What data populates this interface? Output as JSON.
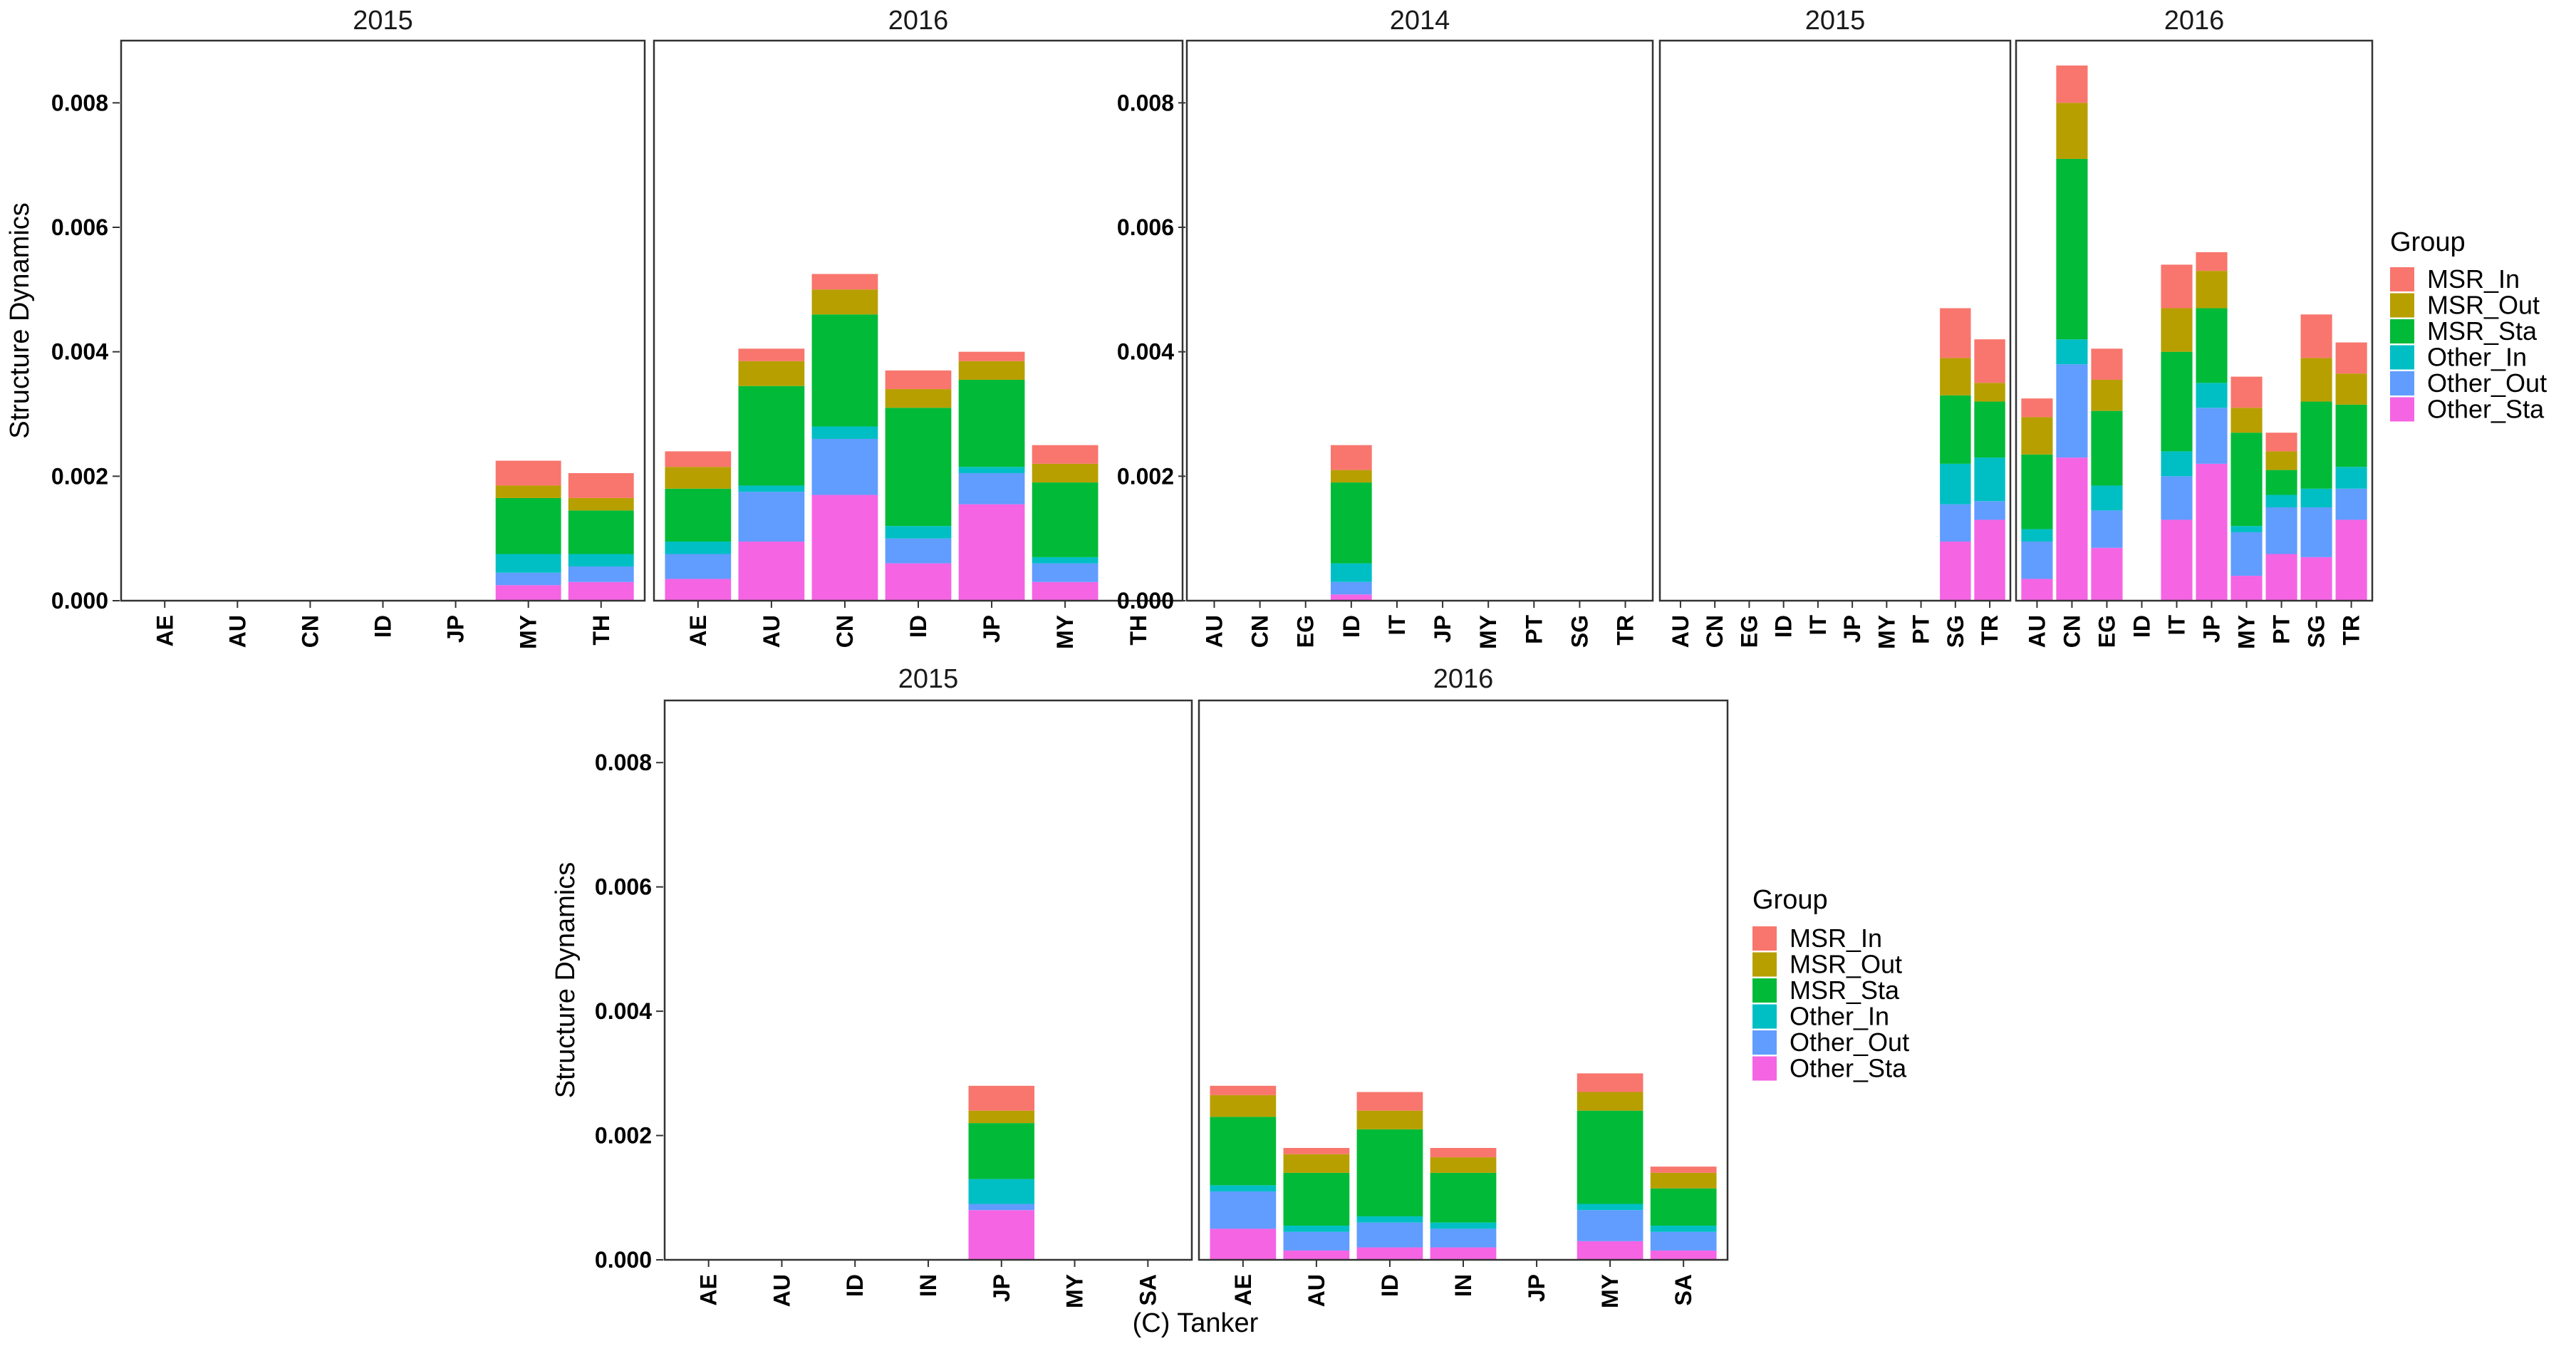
{
  "groups": [
    "MSR_In",
    "MSR_Out",
    "MSR_Sta",
    "Other_In",
    "Other_Out",
    "Other_Sta"
  ],
  "colors": {
    "MSR_In": "#F8766D",
    "MSR_Out": "#B79F00",
    "MSR_Sta": "#00BA38",
    "Other_In": "#00BFC4",
    "Other_Out": "#619CFF",
    "Other_Sta": "#F564E3"
  },
  "caption": "(C) Tanker",
  "chart_data": [
    {
      "type": "bar",
      "stacked": true,
      "ylabel": "Structure Dynamics",
      "ylim": [
        0,
        0.009
      ],
      "yticks": [
        0.0,
        0.002,
        0.004,
        0.006,
        0.008
      ],
      "ytick_labels": [
        "0.000",
        "0.002",
        "0.004",
        "0.006",
        "0.008"
      ],
      "legend": "none",
      "facets": [
        {
          "label": "2015",
          "categories": [
            "AE",
            "AU",
            "CN",
            "ID",
            "JP",
            "MY",
            "TH"
          ],
          "series": [
            {
              "name": "Other_Sta",
              "values": [
                0,
                0,
                0,
                0,
                0,
                0.00025,
                0.0003
              ]
            },
            {
              "name": "Other_Out",
              "values": [
                0,
                0,
                0,
                0,
                0,
                0.0002,
                0.00025
              ]
            },
            {
              "name": "Other_In",
              "values": [
                0,
                0,
                0,
                0,
                0,
                0.0003,
                0.0002
              ]
            },
            {
              "name": "MSR_Sta",
              "values": [
                0,
                0,
                0,
                0,
                0,
                0.0009,
                0.0007
              ]
            },
            {
              "name": "MSR_Out",
              "values": [
                0,
                0,
                0,
                0,
                0,
                0.0002,
                0.0002
              ]
            },
            {
              "name": "MSR_In",
              "values": [
                0,
                0,
                0,
                0,
                0,
                0.0004,
                0.0004
              ]
            }
          ]
        },
        {
          "label": "2016",
          "categories": [
            "AE",
            "AU",
            "CN",
            "ID",
            "JP",
            "MY",
            "TH"
          ],
          "series": [
            {
              "name": "Other_Sta",
              "values": [
                0.00035,
                0.00095,
                0.0017,
                0.0006,
                0.00155,
                0.0003,
                0
              ]
            },
            {
              "name": "Other_Out",
              "values": [
                0.0004,
                0.0008,
                0.0009,
                0.0004,
                0.0005,
                0.0003,
                0
              ]
            },
            {
              "name": "Other_In",
              "values": [
                0.0002,
                0.0001,
                0.0002,
                0.0002,
                0.0001,
                0.0001,
                0
              ]
            },
            {
              "name": "MSR_Sta",
              "values": [
                0.00085,
                0.0016,
                0.0018,
                0.0019,
                0.0014,
                0.0012,
                0
              ]
            },
            {
              "name": "MSR_Out",
              "values": [
                0.00035,
                0.0004,
                0.0004,
                0.0003,
                0.0003,
                0.0003,
                0
              ]
            },
            {
              "name": "MSR_In",
              "values": [
                0.00025,
                0.0002,
                0.00025,
                0.0003,
                0.00015,
                0.0003,
                0
              ]
            }
          ]
        }
      ]
    },
    {
      "type": "bar",
      "stacked": true,
      "ylabel": "Structure Dynamics",
      "ylim": [
        0,
        0.009
      ],
      "yticks": [
        0.0,
        0.002,
        0.004,
        0.006,
        0.008
      ],
      "ytick_labels": [
        "0.000",
        "0.002",
        "0.004",
        "0.006",
        "0.008"
      ],
      "legend": "right",
      "legend_title": "Group",
      "facets": [
        {
          "label": "2014",
          "categories": [
            "AU",
            "CN",
            "EG",
            "ID",
            "IT",
            "JP",
            "MY",
            "PT",
            "SG",
            "TR"
          ],
          "series": [
            {
              "name": "Other_Sta",
              "values": [
                0,
                0,
                0,
                0.0001,
                0,
                0,
                0,
                0,
                0,
                0
              ]
            },
            {
              "name": "Other_Out",
              "values": [
                0,
                0,
                0,
                0.0002,
                0,
                0,
                0,
                0,
                0,
                0
              ]
            },
            {
              "name": "Other_In",
              "values": [
                0,
                0,
                0,
                0.0003,
                0,
                0,
                0,
                0,
                0,
                0
              ]
            },
            {
              "name": "MSR_Sta",
              "values": [
                0,
                0,
                0,
                0.0013,
                0,
                0,
                0,
                0,
                0,
                0
              ]
            },
            {
              "name": "MSR_Out",
              "values": [
                0,
                0,
                0,
                0.0002,
                0,
                0,
                0,
                0,
                0,
                0
              ]
            },
            {
              "name": "MSR_In",
              "values": [
                0,
                0,
                0,
                0.0004,
                0,
                0,
                0,
                0,
                0,
                0
              ]
            }
          ]
        },
        {
          "label": "2015",
          "categories": [
            "AU",
            "CN",
            "EG",
            "ID",
            "IT",
            "JP",
            "MY",
            "PT",
            "SG",
            "TR"
          ],
          "series": [
            {
              "name": "Other_Sta",
              "values": [
                0,
                0,
                0,
                0,
                0,
                0,
                0,
                0,
                0.00095,
                0.0013
              ]
            },
            {
              "name": "Other_Out",
              "values": [
                0,
                0,
                0,
                0,
                0,
                0,
                0,
                0,
                0.0006,
                0.0003
              ]
            },
            {
              "name": "Other_In",
              "values": [
                0,
                0,
                0,
                0,
                0,
                0,
                0,
                0,
                0.00065,
                0.0007
              ]
            },
            {
              "name": "MSR_Sta",
              "values": [
                0,
                0,
                0,
                0,
                0,
                0,
                0,
                0,
                0.0011,
                0.0009
              ]
            },
            {
              "name": "MSR_Out",
              "values": [
                0,
                0,
                0,
                0,
                0,
                0,
                0,
                0,
                0.0006,
                0.0003
              ]
            },
            {
              "name": "MSR_In",
              "values": [
                0,
                0,
                0,
                0,
                0,
                0,
                0,
                0,
                0.0008,
                0.0007
              ]
            }
          ]
        },
        {
          "label": "2016",
          "categories": [
            "AU",
            "CN",
            "EG",
            "ID",
            "IT",
            "JP",
            "MY",
            "PT",
            "SG",
            "TR"
          ],
          "series": [
            {
              "name": "Other_Sta",
              "values": [
                0.00035,
                0.0023,
                0.00085,
                0,
                0.0013,
                0.0022,
                0.0004,
                0.00075,
                0.0007,
                0.0013
              ]
            },
            {
              "name": "Other_Out",
              "values": [
                0.0006,
                0.0015,
                0.0006,
                0,
                0.0007,
                0.0009,
                0.0007,
                0.00075,
                0.0008,
                0.0005
              ]
            },
            {
              "name": "Other_In",
              "values": [
                0.0002,
                0.0004,
                0.0004,
                0,
                0.0004,
                0.0004,
                0.0001,
                0.0002,
                0.0003,
                0.00035
              ]
            },
            {
              "name": "MSR_Sta",
              "values": [
                0.0012,
                0.0029,
                0.0012,
                0,
                0.0016,
                0.0012,
                0.0015,
                0.0004,
                0.0014,
                0.001
              ]
            },
            {
              "name": "MSR_Out",
              "values": [
                0.0006,
                0.0009,
                0.0005,
                0,
                0.0007,
                0.0006,
                0.0004,
                0.0003,
                0.0007,
                0.0005
              ]
            },
            {
              "name": "MSR_In",
              "values": [
                0.0003,
                0.0006,
                0.0005,
                0,
                0.0007,
                0.0003,
                0.0005,
                0.0003,
                0.0007,
                0.0005
              ]
            }
          ]
        }
      ]
    },
    {
      "type": "bar",
      "stacked": true,
      "ylabel": "Structure Dynamics",
      "ylim": [
        0,
        0.009
      ],
      "yticks": [
        0.0,
        0.002,
        0.004,
        0.006,
        0.008
      ],
      "ytick_labels": [
        "0.000",
        "0.002",
        "0.004",
        "0.006",
        "0.008"
      ],
      "legend": "right",
      "legend_title": "Group",
      "facets": [
        {
          "label": "2015",
          "categories": [
            "AE",
            "AU",
            "ID",
            "IN",
            "JP",
            "MY",
            "SA"
          ],
          "series": [
            {
              "name": "Other_Sta",
              "values": [
                0,
                0,
                0,
                0,
                0.0008,
                0,
                0
              ]
            },
            {
              "name": "Other_Out",
              "values": [
                0,
                0,
                0,
                0,
                0.0001,
                0,
                0
              ]
            },
            {
              "name": "Other_In",
              "values": [
                0,
                0,
                0,
                0,
                0.0004,
                0,
                0
              ]
            },
            {
              "name": "MSR_Sta",
              "values": [
                0,
                0,
                0,
                0,
                0.0009,
                0,
                0
              ]
            },
            {
              "name": "MSR_Out",
              "values": [
                0,
                0,
                0,
                0,
                0.0002,
                0,
                0
              ]
            },
            {
              "name": "MSR_In",
              "values": [
                0,
                0,
                0,
                0,
                0.0004,
                0,
                0
              ]
            }
          ]
        },
        {
          "label": "2016",
          "categories": [
            "AE",
            "AU",
            "ID",
            "IN",
            "JP",
            "MY",
            "SA"
          ],
          "series": [
            {
              "name": "Other_Sta",
              "values": [
                0.0005,
                0.00015,
                0.0002,
                0.0002,
                0,
                0.0003,
                0.00015
              ]
            },
            {
              "name": "Other_Out",
              "values": [
                0.0006,
                0.0003,
                0.0004,
                0.0003,
                0,
                0.0005,
                0.0003
              ]
            },
            {
              "name": "Other_In",
              "values": [
                0.0001,
                0.0001,
                0.0001,
                0.0001,
                0,
                0.0001,
                0.0001
              ]
            },
            {
              "name": "MSR_Sta",
              "values": [
                0.0011,
                0.00085,
                0.0014,
                0.0008,
                0,
                0.0015,
                0.0006
              ]
            },
            {
              "name": "MSR_Out",
              "values": [
                0.00035,
                0.0003,
                0.0003,
                0.00025,
                0,
                0.0003,
                0.00025
              ]
            },
            {
              "name": "MSR_In",
              "values": [
                0.00015,
                0.0001,
                0.0003,
                0.00015,
                0,
                0.0003,
                0.0001
              ]
            }
          ]
        }
      ]
    }
  ]
}
